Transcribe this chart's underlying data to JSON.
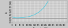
{
  "title": "",
  "xlabel": "Temperature (°C)",
  "ylabel": "Cp",
  "xlim": [
    0,
    370
  ],
  "ylim": [
    3.98,
    4.85
  ],
  "x_ticks": [
    0,
    25,
    50,
    75,
    100,
    125,
    150,
    175,
    200,
    225,
    250,
    275,
    300,
    325,
    350
  ],
  "y_ticks": [
    4.0,
    4.1,
    4.2,
    4.3,
    4.4,
    4.5,
    4.6,
    4.7,
    4.8
  ],
  "line_color": "#40c8e0",
  "ref_line_color": "#909090",
  "ref_line_y": 4.18,
  "background_color": "#c8c8c8",
  "plot_bg_color": "#c8c8c8",
  "grid_color": "#ffffff",
  "data_x": [
    0,
    10,
    20,
    30,
    40,
    50,
    60,
    70,
    80,
    90,
    100,
    110,
    120,
    130,
    140,
    150,
    160,
    170,
    180,
    190,
    200,
    210,
    220,
    230,
    240,
    250,
    260,
    270,
    280,
    290,
    300,
    310,
    320,
    330,
    340,
    350,
    360,
    370
  ],
  "data_y": [
    4.218,
    4.192,
    4.182,
    4.178,
    4.179,
    4.181,
    4.185,
    4.19,
    4.196,
    4.205,
    4.216,
    4.229,
    4.245,
    4.263,
    4.285,
    4.31,
    4.34,
    4.375,
    4.415,
    4.46,
    4.514,
    4.575,
    4.647,
    4.731,
    4.831,
    4.95,
    5.08,
    5.23,
    5.41,
    5.63,
    5.9,
    6.25,
    6.71,
    7.35,
    8.35,
    10.1,
    14.0,
    14.0
  ],
  "tick_fontsize": 1.8,
  "label_fontsize": 1.8,
  "linewidth": 0.5,
  "ref_linewidth": 0.5
}
